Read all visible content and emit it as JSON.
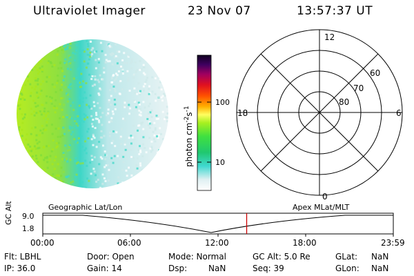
{
  "header": {
    "instrument": "Ultraviolet Imager",
    "date": "23 Nov 07",
    "time": "13:57:37 UT"
  },
  "colorbar": {
    "unit_label": "photon cm",
    "unit_sup1": "-2",
    "unit_mid": "s",
    "unit_sup2": "-1",
    "ticks": [
      "100",
      "10"
    ]
  },
  "polar_plot": {
    "mlt_labels": {
      "top": "12",
      "left": "18",
      "right": "6",
      "bottom": "0"
    },
    "lat_labels": [
      "60",
      "70",
      "80"
    ]
  },
  "timeline": {
    "left_title": "Geographic Lat/Lon",
    "right_title": "Apex MLat/MLT",
    "axis_title": "GC Alt",
    "y_ticks": [
      "9.0",
      "1.8"
    ],
    "x_ticks": [
      "00:00",
      "06:00",
      "12:00",
      "18:00",
      "23:59"
    ],
    "current_time_marker_hours": 13.96,
    "marker_color": "#cc0000"
  },
  "status": {
    "flt": "Flt: LBHL",
    "ip": "IP: 36.0",
    "door": "Door: Open",
    "gain": "Gain: 14",
    "mode": "Mode: Normal",
    "dsp": "Dsp:",
    "dsp_val": "NaN",
    "gcalt": "GC Alt: 5.0 Re",
    "seq": "Seq: 39",
    "glat": "GLat:",
    "glat_val": "NaN",
    "glon": "GLon:",
    "glon_val": "NaN"
  },
  "colors": {
    "aurora_bright": "#a8e61e",
    "aurora_mid": "#3fd8c8",
    "aurora_faint": "#cfe9ea"
  }
}
